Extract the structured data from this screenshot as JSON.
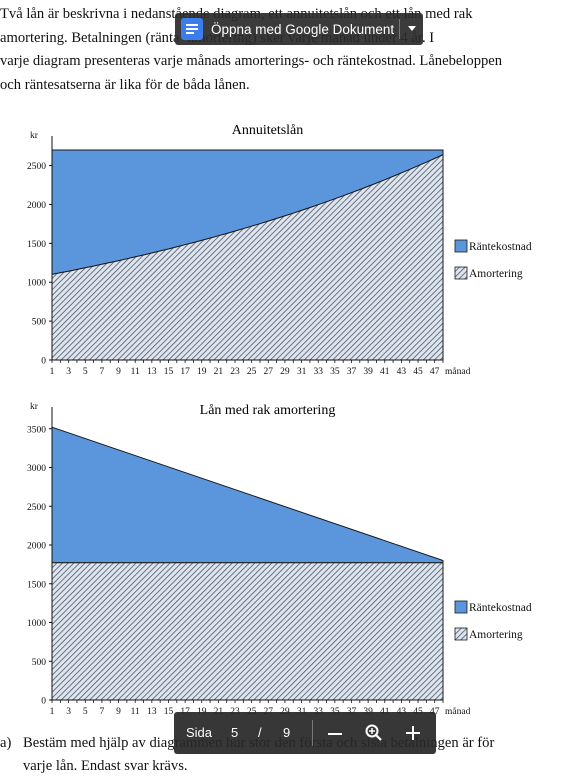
{
  "paragraph": {
    "lines": [
      "Två lån är beskrivna i nedanstående diagram, ett annuitetslån och ett lån med rak",
      "amortering. Betalningen (ränta+amortering) sker varje månad under 4 år. I",
      "varje diagram presenteras varje månads amorterings- och räntekostnad. Lånebeloppen",
      "och räntesatserna är lika för de båda lånen."
    ]
  },
  "open_with": {
    "label": "Öppna med Google Dokument",
    "icon": "google-docs-icon",
    "menu_icon": "caret-down-icon"
  },
  "chart_data": [
    {
      "type": "area",
      "title": "Annuitetslån",
      "ylabel": "kr",
      "xlabel": "månad",
      "x_ticks": [
        "1",
        "3",
        "5",
        "7",
        "9",
        "11",
        "13",
        "15",
        "17",
        "19",
        "21",
        "23",
        "25",
        "27",
        "29",
        "31",
        "33",
        "35",
        "37",
        "39",
        "41",
        "43",
        "45",
        "47"
      ],
      "y_ticks": [
        "0",
        "500",
        "1000",
        "1500",
        "2000",
        "2500"
      ],
      "xlim": [
        1,
        48
      ],
      "ylim": [
        0,
        2700
      ],
      "series": [
        {
          "name": "Räntekostnad",
          "color": "#5b96dd",
          "start": 1600,
          "end": 60
        },
        {
          "name": "Amortering",
          "color": "#b8c4d4",
          "start": 1100,
          "end": 2640,
          "pattern": "hatched"
        }
      ],
      "total_payment": 2700,
      "legend": "right"
    },
    {
      "type": "area",
      "title": "Lån med rak amortering",
      "ylabel": "kr",
      "xlabel": "månad",
      "x_ticks": [
        "1",
        "3",
        "5",
        "7",
        "9",
        "11",
        "13",
        "15",
        "17",
        "19",
        "21",
        "23",
        "25",
        "27",
        "29",
        "31",
        "33",
        "35",
        "37",
        "39",
        "41",
        "43",
        "45",
        "47"
      ],
      "y_ticks": [
        "0",
        "500",
        "1000",
        "1500",
        "2000",
        "2500",
        "3000",
        "3500"
      ],
      "xlim": [
        1,
        48
      ],
      "ylim": [
        0,
        3600
      ],
      "series": [
        {
          "name": "Räntekostnad",
          "color": "#5b96dd",
          "start": 1750,
          "end": 30
        },
        {
          "name": "Amortering",
          "color": "#b8c4d4",
          "start": 1770,
          "end": 1770,
          "pattern": "hatched"
        }
      ],
      "first_payment": 3520,
      "last_payment": 1800,
      "legend": "right"
    }
  ],
  "question": {
    "label": "a)",
    "line1": "Bestäm med hjälp av diagrammen hur stor den första och sista betalningen är för",
    "line2": "varje lån. Endast svar krävs."
  },
  "pager": {
    "page_label": "Sida",
    "current": "5",
    "separator": "/",
    "total": "9",
    "zoom_out_icon": "minus-icon",
    "zoom_icon": "magnifier-icon",
    "zoom_in_icon": "plus-icon"
  }
}
